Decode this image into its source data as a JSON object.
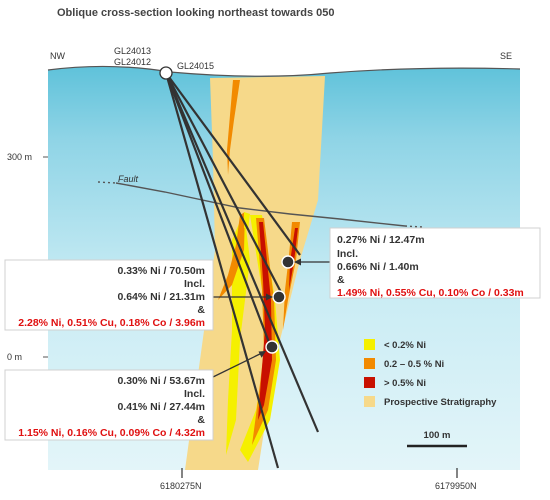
{
  "title": "Oblique cross-section looking northeast towards 050",
  "directions": {
    "left": "NW",
    "right": "SE"
  },
  "drillholes": {
    "a": "GL24013",
    "b": "GL24012",
    "c": "GL24015"
  },
  "fault_label": "Fault",
  "elevations": {
    "upper": "300 m",
    "lower": "0 m"
  },
  "eastings": {
    "left": "6180275N",
    "right": "6179950N"
  },
  "scale_label": "100 m",
  "intercepts": {
    "right": {
      "line1": "0.27% Ni / 12.47m",
      "line2": "Incl.",
      "line3": "0.66% Ni / 1.40m",
      "line4": "&",
      "line5": "1.49% Ni, 0.55% Cu, 0.10% Co / 0.33m"
    },
    "middle": {
      "line1": "0.33% Ni / 70.50m",
      "line2": "Incl.",
      "line3": "0.64% Ni / 21.31m",
      "line4": "&",
      "line5": "2.28% Ni, 0.51% Cu, 0.18% Co / 3.96m"
    },
    "lower": {
      "line1": "0.30% Ni / 53.67m",
      "line2": "Incl.",
      "line3": "0.41% Ni / 27.44m",
      "line4": "&",
      "line5": "1.15% Ni, 0.16% Cu, 0.09% Co / 4.32m"
    }
  },
  "legend": [
    {
      "label": "< 0.2% Ni",
      "color": "#f5f000"
    },
    {
      "label": "0.2 – 0.5 % Ni",
      "color": "#f28a00"
    },
    {
      "label": "> 0.5% Ni",
      "color": "#c81000"
    },
    {
      "label": "Prospective Stratigraphy",
      "color": "#f6d98a"
    }
  ],
  "colors": {
    "sky_top": "#c7ebf3",
    "sky_bottom": "#5fc2da",
    "stratigraphy": "#f6d98a",
    "highlight_red": "#e01010",
    "drill": "#333333"
  }
}
